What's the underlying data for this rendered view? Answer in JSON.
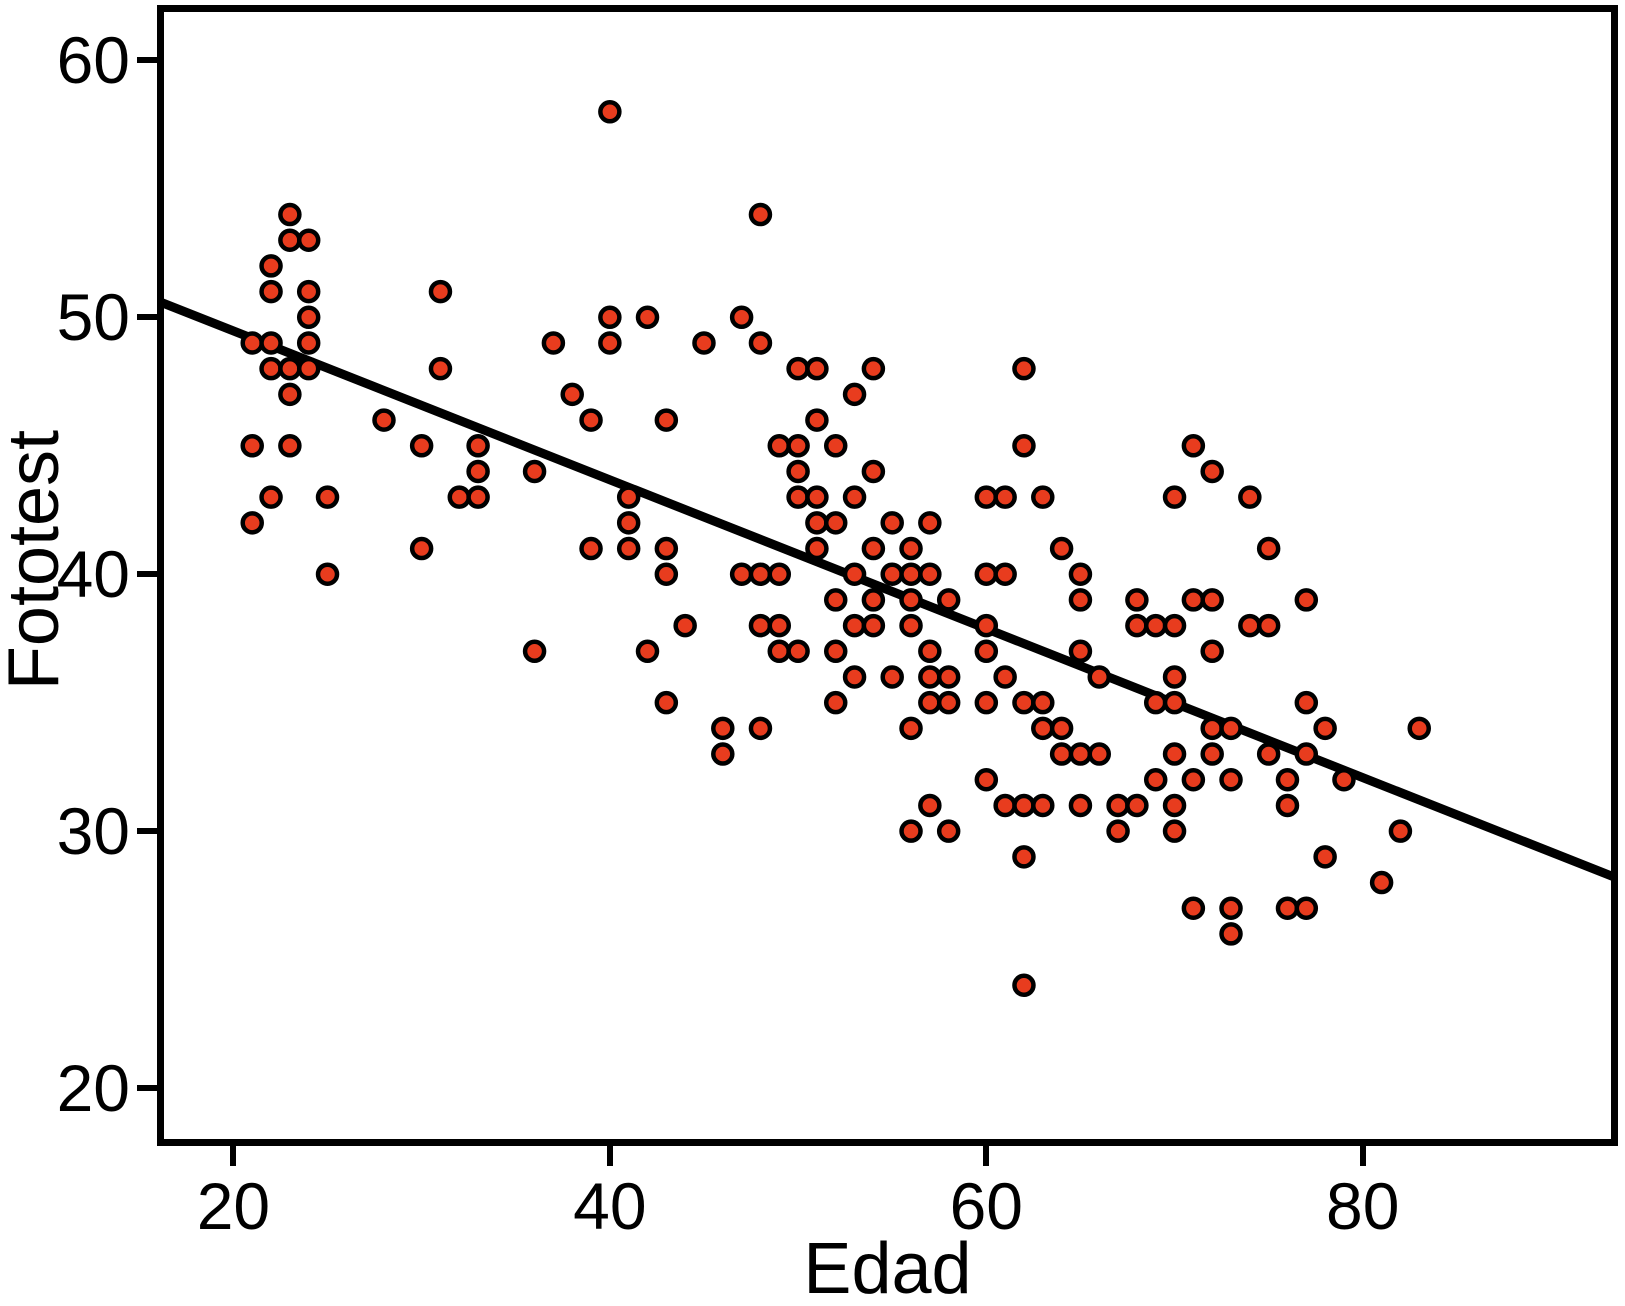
{
  "chart_data": {
    "type": "scatter",
    "title": "",
    "xlabel": "Edad",
    "ylabel": "Fototest",
    "x_ticks": [
      20,
      40,
      60,
      80
    ],
    "y_ticks": [
      60,
      50,
      40,
      30,
      20
    ],
    "x_range": [
      16.1,
      93.4
    ],
    "y_range": [
      17.9,
      62.0
    ],
    "grid": false,
    "legend_position": "none",
    "point_color": "#e83c1e",
    "point_outline_color": "#000000",
    "trendline_color": "#000000",
    "axis_color": "#000000",
    "background_color": "#ffffff",
    "trendline": {
      "x1": 16.1,
      "y1": 50.6,
      "x2": 93.4,
      "y2": 28.2
    },
    "points": [
      [
        21,
        49
      ],
      [
        21,
        45
      ],
      [
        21,
        42
      ],
      [
        22,
        52
      ],
      [
        22,
        51
      ],
      [
        22,
        49
      ],
      [
        22,
        48
      ],
      [
        22,
        43
      ],
      [
        23,
        54
      ],
      [
        23,
        53
      ],
      [
        23,
        48
      ],
      [
        23,
        47
      ],
      [
        23,
        45
      ],
      [
        24,
        53
      ],
      [
        24,
        51
      ],
      [
        24,
        50
      ],
      [
        24,
        49
      ],
      [
        24,
        48
      ],
      [
        25,
        43
      ],
      [
        25,
        40
      ],
      [
        28,
        46
      ],
      [
        30,
        45
      ],
      [
        30,
        41
      ],
      [
        31,
        51
      ],
      [
        31,
        48
      ],
      [
        32,
        43
      ],
      [
        33,
        45
      ],
      [
        33,
        44
      ],
      [
        33,
        43
      ],
      [
        36,
        44
      ],
      [
        36,
        37
      ],
      [
        37,
        49
      ],
      [
        38,
        47
      ],
      [
        39,
        46
      ],
      [
        39,
        41
      ],
      [
        40,
        58
      ],
      [
        40,
        50
      ],
      [
        40,
        49
      ],
      [
        41,
        43
      ],
      [
        41,
        42
      ],
      [
        41,
        41
      ],
      [
        42,
        50
      ],
      [
        42,
        37
      ],
      [
        43,
        46
      ],
      [
        43,
        41
      ],
      [
        43,
        40
      ],
      [
        43,
        35
      ],
      [
        44,
        38
      ],
      [
        45,
        49
      ],
      [
        46,
        34
      ],
      [
        46,
        33
      ],
      [
        47,
        50
      ],
      [
        47,
        40
      ],
      [
        48,
        54
      ],
      [
        48,
        49
      ],
      [
        48,
        40
      ],
      [
        48,
        38
      ],
      [
        48,
        34
      ],
      [
        49,
        45
      ],
      [
        49,
        40
      ],
      [
        49,
        38
      ],
      [
        49,
        37
      ],
      [
        50,
        48
      ],
      [
        50,
        45
      ],
      [
        50,
        44
      ],
      [
        50,
        43
      ],
      [
        50,
        37
      ],
      [
        51,
        48
      ],
      [
        51,
        46
      ],
      [
        51,
        43
      ],
      [
        51,
        42
      ],
      [
        51,
        41
      ],
      [
        52,
        45
      ],
      [
        52,
        42
      ],
      [
        52,
        39
      ],
      [
        52,
        37
      ],
      [
        52,
        35
      ],
      [
        53,
        47
      ],
      [
        53,
        43
      ],
      [
        53,
        40
      ],
      [
        53,
        38
      ],
      [
        53,
        36
      ],
      [
        54,
        48
      ],
      [
        54,
        44
      ],
      [
        54,
        41
      ],
      [
        54,
        39
      ],
      [
        54,
        38
      ],
      [
        55,
        42
      ],
      [
        55,
        40
      ],
      [
        55,
        36
      ],
      [
        56,
        41
      ],
      [
        56,
        40
      ],
      [
        56,
        39
      ],
      [
        56,
        38
      ],
      [
        56,
        34
      ],
      [
        56,
        30
      ],
      [
        57,
        42
      ],
      [
        57,
        40
      ],
      [
        57,
        37
      ],
      [
        57,
        36
      ],
      [
        57,
        35
      ],
      [
        57,
        31
      ],
      [
        58,
        39
      ],
      [
        58,
        36
      ],
      [
        58,
        35
      ],
      [
        58,
        30
      ],
      [
        60,
        43
      ],
      [
        60,
        40
      ],
      [
        60,
        38
      ],
      [
        60,
        37
      ],
      [
        60,
        35
      ],
      [
        60,
        32
      ],
      [
        61,
        43
      ],
      [
        61,
        40
      ],
      [
        61,
        36
      ],
      [
        61,
        31
      ],
      [
        62,
        48
      ],
      [
        62,
        45
      ],
      [
        62,
        35
      ],
      [
        62,
        31
      ],
      [
        62,
        29
      ],
      [
        62,
        24
      ],
      [
        63,
        43
      ],
      [
        63,
        35
      ],
      [
        63,
        34
      ],
      [
        63,
        31
      ],
      [
        64,
        41
      ],
      [
        64,
        34
      ],
      [
        64,
        33
      ],
      [
        65,
        40
      ],
      [
        65,
        39
      ],
      [
        65,
        37
      ],
      [
        65,
        33
      ],
      [
        65,
        31
      ],
      [
        66,
        36
      ],
      [
        66,
        33
      ],
      [
        67,
        31
      ],
      [
        67,
        30
      ],
      [
        68,
        39
      ],
      [
        68,
        38
      ],
      [
        68,
        31
      ],
      [
        69,
        38
      ],
      [
        69,
        35
      ],
      [
        69,
        32
      ],
      [
        70,
        43
      ],
      [
        70,
        38
      ],
      [
        70,
        36
      ],
      [
        70,
        35
      ],
      [
        70,
        33
      ],
      [
        70,
        31
      ],
      [
        70,
        30
      ],
      [
        71,
        45
      ],
      [
        71,
        39
      ],
      [
        71,
        32
      ],
      [
        71,
        27
      ],
      [
        72,
        44
      ],
      [
        72,
        39
      ],
      [
        72,
        37
      ],
      [
        72,
        34
      ],
      [
        72,
        33
      ],
      [
        73,
        34
      ],
      [
        73,
        32
      ],
      [
        73,
        27
      ],
      [
        73,
        26
      ],
      [
        74,
        43
      ],
      [
        74,
        38
      ],
      [
        75,
        41
      ],
      [
        75,
        38
      ],
      [
        75,
        33
      ],
      [
        76,
        32
      ],
      [
        76,
        31
      ],
      [
        76,
        27
      ],
      [
        77,
        39
      ],
      [
        77,
        35
      ],
      [
        77,
        33
      ],
      [
        77,
        27
      ],
      [
        78,
        34
      ],
      [
        78,
        29
      ],
      [
        79,
        32
      ],
      [
        81,
        28
      ],
      [
        82,
        30
      ],
      [
        83,
        34
      ]
    ]
  }
}
